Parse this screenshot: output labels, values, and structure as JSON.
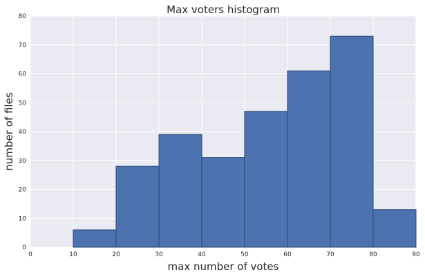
{
  "colors": {
    "plot_background": "#eaeaf2",
    "grid": "#ffffff",
    "bar_fill": "#4c72b0",
    "bar_edge": "#2a4872"
  },
  "chart_data": {
    "type": "bar",
    "title": "Max voters histogram",
    "xlabel": "max number of votes",
    "ylabel": "number of files",
    "bins": [
      {
        "start": 0,
        "end": 10,
        "count": 0
      },
      {
        "start": 10,
        "end": 20,
        "count": 6
      },
      {
        "start": 20,
        "end": 30,
        "count": 28
      },
      {
        "start": 30,
        "end": 40,
        "count": 39
      },
      {
        "start": 40,
        "end": 50,
        "count": 31
      },
      {
        "start": 50,
        "end": 60,
        "count": 47
      },
      {
        "start": 60,
        "end": 70,
        "count": 61
      },
      {
        "start": 70,
        "end": 80,
        "count": 73
      },
      {
        "start": 80,
        "end": 90,
        "count": 13
      }
    ],
    "xlim": [
      0,
      90
    ],
    "ylim": [
      0,
      80
    ],
    "xticks": [
      0,
      10,
      20,
      30,
      40,
      50,
      60,
      70,
      80,
      90
    ],
    "yticks": [
      0,
      10,
      20,
      30,
      40,
      50,
      60,
      70,
      80
    ],
    "grid": true
  }
}
